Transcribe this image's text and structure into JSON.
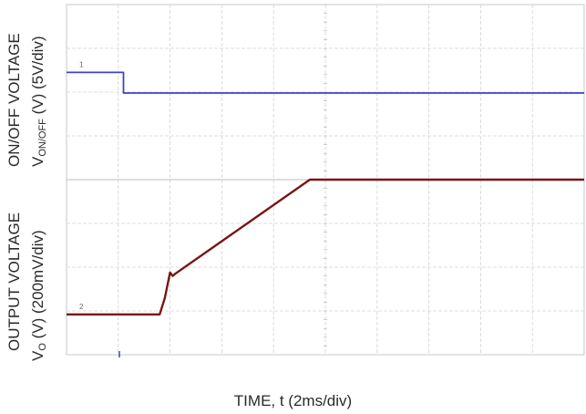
{
  "chart_data": [
    {
      "type": "line",
      "panel": "top",
      "ylabel_line1": "ON/OFF VOLTAGE",
      "ylabel_line2_main": "V",
      "ylabel_line2_sub": "ON/OFF",
      "ylabel_line2_rest": " (V) (5V/div)",
      "channel_marker": "1",
      "grid": true,
      "x_divisions": 10,
      "y_divisions": 4,
      "series": [
        {
          "color": "#3b46c4",
          "x": [
            0,
            1.1,
            1.1,
            10
          ],
          "y": [
            2.45,
            2.45,
            1.98,
            1.98
          ]
        }
      ]
    },
    {
      "type": "line",
      "panel": "bottom",
      "ylabel_line1": "OUTPUT VOLTAGE",
      "ylabel_line2_main": "V",
      "ylabel_line2_sub": "O",
      "ylabel_line2_rest": " (V) (200mV/div)",
      "channel_marker": "2",
      "grid": true,
      "x_divisions": 10,
      "y_divisions": 4,
      "series": [
        {
          "color": "#7a1515",
          "x": [
            0,
            1.8,
            1.9,
            2.0,
            2.05,
            2.1,
            4.7,
            10
          ],
          "y": [
            0.92,
            0.92,
            1.3,
            1.88,
            1.8,
            1.85,
            4.0,
            4.0
          ]
        }
      ]
    }
  ],
  "xlabel": "TIME, t (2ms/div)"
}
